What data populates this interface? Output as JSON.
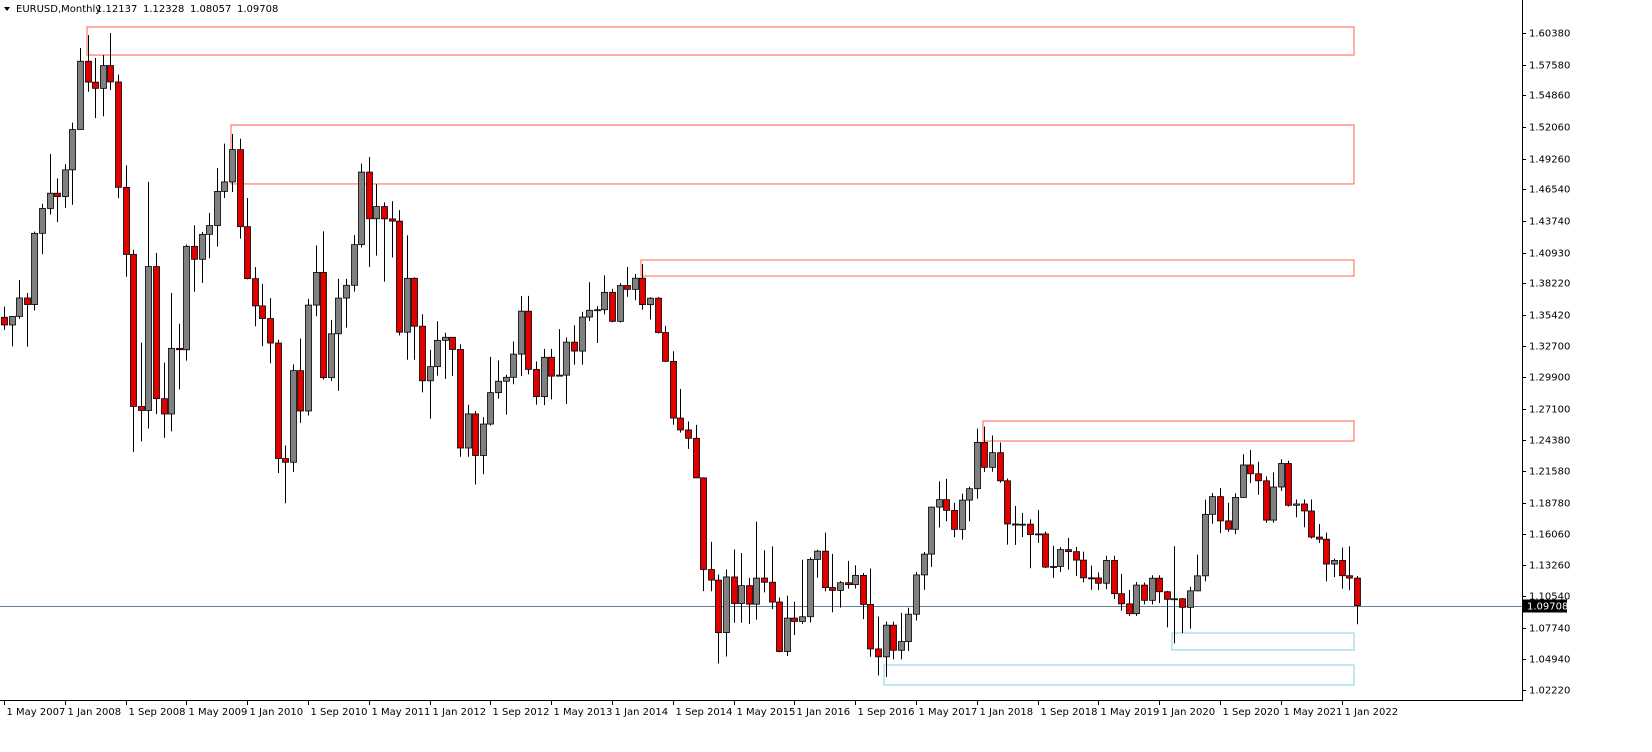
{
  "chart_data": {
    "type": "candlestick",
    "title": "EURUSD,Monthly",
    "categories": [
      "1 May 2007",
      null,
      null,
      null,
      null,
      null,
      null,
      null,
      "1 Jan 2008",
      null,
      null,
      null,
      null,
      null,
      null,
      null,
      "1 Sep 2008",
      null,
      null,
      null,
      null,
      null,
      null,
      null,
      "1 May 2009",
      null,
      null,
      null,
      null,
      null,
      null,
      null,
      "1 Jan 2010",
      null,
      null,
      null,
      null,
      null,
      null,
      null,
      "1 Sep 2010",
      null,
      null,
      null,
      null,
      null,
      null,
      null,
      "1 May 2011",
      null,
      null,
      null,
      null,
      null,
      null,
      null,
      "1 Jan 2012",
      null,
      null,
      null,
      null,
      null,
      null,
      null,
      "1 Sep 2012",
      null,
      null,
      null,
      null,
      null,
      null,
      null,
      "1 May 2013",
      null,
      null,
      null,
      null,
      null,
      null,
      null,
      "1 Jan 2014",
      null,
      null,
      null,
      null,
      null,
      null,
      null,
      "1 Sep 2014",
      null,
      null,
      null,
      null,
      null,
      null,
      null,
      "1 May 2015",
      null,
      null,
      null,
      null,
      null,
      null,
      null,
      "1 Jan 2016",
      null,
      null,
      null,
      null,
      null,
      null,
      null,
      "1 Sep 2016",
      null,
      null,
      null,
      null,
      null,
      null,
      null,
      "1 May 2017",
      null,
      null,
      null,
      null,
      null,
      null,
      null,
      "1 Jan 2018",
      null,
      null,
      null,
      null,
      null,
      null,
      null,
      "1 Sep 2018",
      null,
      null,
      null,
      null,
      null,
      null,
      null,
      "1 May 2019",
      null,
      null,
      null,
      null,
      null,
      null,
      null,
      "1 Jan 2020",
      null,
      null,
      null,
      null,
      null,
      null,
      null,
      "1 Sep 2020",
      null,
      null,
      null,
      null,
      null,
      null,
      null,
      "1 May 2021",
      null,
      null,
      null,
      null,
      null,
      null,
      null,
      "1 Jan 2022",
      null,
      null
    ],
    "open": [
      1.3522,
      1.3454,
      1.353,
      1.3693,
      1.3635,
      1.4265,
      1.4485,
      1.462,
      1.459,
      1.4827,
      1.5184,
      1.5788,
      1.5603,
      1.5548,
      1.575,
      1.5605,
      1.4672,
      1.4078,
      1.2733,
      1.2697,
      1.3971,
      1.2802,
      1.2666,
      1.3247,
      1.3235,
      1.415,
      1.4035,
      1.4256,
      1.4334,
      1.4636,
      1.472,
      1.5006,
      1.4324,
      1.3864,
      1.3623,
      1.3511,
      1.3294,
      1.2272,
      1.2239,
      1.305,
      1.2693,
      1.363,
      1.3919,
      1.2988,
      1.3376,
      1.3692,
      1.3805,
      1.4165,
      1.4807,
      1.4394,
      1.4502,
      1.4393,
      1.4373,
      1.339,
      1.3867,
      1.3443,
      1.296,
      1.3085,
      1.3318,
      1.3345,
      1.3237,
      1.2365,
      1.2667,
      1.2299,
      1.2577,
      1.2855,
      1.2956,
      1.2991,
      1.3196,
      1.3576,
      1.3061,
      1.282,
      1.3168,
      1.3001,
      1.301,
      1.3302,
      1.3223,
      1.3524,
      1.3584,
      1.3589,
      1.3743,
      1.3486,
      1.3803,
      1.3769,
      1.3868,
      1.3634,
      1.3691,
      1.3387,
      1.3132,
      1.263,
      1.2525,
      1.2451,
      1.2101,
      1.129,
      1.1196,
      1.0731,
      1.1224,
      1.0989,
      1.1147,
      1.0983,
      1.1214,
      1.1177,
      1.1002,
      1.0564,
      1.086,
      1.083,
      1.0872,
      1.1379,
      1.1452,
      1.113,
      1.1105,
      1.1173,
      1.1156,
      1.1238,
      1.0981,
      1.0587,
      1.0517,
      1.0797,
      1.0575,
      1.0652,
      1.0894,
      1.1242,
      1.1426,
      1.1842,
      1.1908,
      1.1813,
      1.1645,
      1.1904,
      1.2005,
      1.2415,
      1.2194,
      1.2324,
      1.2075,
      1.1693,
      1.1683,
      1.1691,
      1.1599,
      1.1605,
      1.1311,
      1.1317,
      1.1466,
      1.1448,
      1.1373,
      1.1216,
      1.1215,
      1.1168,
      1.137,
      1.1076,
      1.0986,
      1.0899,
      1.1152,
      1.1017,
      1.1213,
      1.1093,
      1.1026,
      1.1031,
      1.0955,
      1.1101,
      1.1234,
      1.1778,
      1.1935,
      1.172,
      1.1646,
      1.1928,
      1.2215,
      1.2137,
      1.2075,
      1.1727,
      1.202,
      1.2228,
      1.1858,
      1.187,
      1.1808,
      1.1577,
      1.1558,
      1.1338,
      1.137,
      1.1235,
      1.12137
    ],
    "high": [
      1.3616,
      1.3531,
      1.3852,
      1.3737,
      1.428,
      1.4527,
      1.4967,
      1.4751,
      1.4876,
      1.5245,
      1.5905,
      1.6019,
      1.5817,
      1.5842,
      1.6038,
      1.5668,
      1.4866,
      1.412,
      1.3298,
      1.472,
      1.4092,
      1.3121,
      1.3738,
      1.3465,
      1.4165,
      1.4337,
      1.4277,
      1.4446,
      1.4843,
      1.5059,
      1.5144,
      1.5102,
      1.4578,
      1.3966,
      1.3819,
      1.3692,
      1.3323,
      1.2387,
      1.3105,
      1.3334,
      1.3685,
      1.4157,
      1.4282,
      1.3499,
      1.3862,
      1.3862,
      1.4249,
      1.4882,
      1.4939,
      1.47,
      1.454,
      1.4549,
      1.447,
      1.4247,
      1.3876,
      1.3549,
      1.3234,
      1.3487,
      1.3385,
      1.3346,
      1.3283,
      1.2748,
      1.2693,
      1.2637,
      1.3172,
      1.314,
      1.3013,
      1.3308,
      1.371,
      1.3711,
      1.3131,
      1.3243,
      1.3243,
      1.3417,
      1.3344,
      1.3452,
      1.3571,
      1.3832,
      1.3621,
      1.3893,
      1.3774,
      1.3824,
      1.3967,
      1.3905,
      1.3993,
      1.37,
      1.37,
      1.3444,
      1.3221,
      1.2887,
      1.26,
      1.257,
      1.2105,
      1.1534,
      1.1245,
      1.129,
      1.1467,
      1.1436,
      1.1216,
      1.1714,
      1.146,
      1.1495,
      1.1041,
      1.1059,
      1.1003,
      1.1376,
      1.1397,
      1.1464,
      1.1616,
      1.1428,
      1.1187,
      1.1366,
      1.1327,
      1.1259,
      1.1299,
      1.0874,
      1.0829,
      1.0829,
      1.0906,
      1.0951,
      1.1268,
      1.1445,
      1.1846,
      1.207,
      1.2092,
      1.188,
      1.1961,
      1.2023,
      1.2537,
      1.2555,
      1.2476,
      1.2414,
      1.2095,
      1.1852,
      1.1791,
      1.1733,
      1.1815,
      1.1625,
      1.15,
      1.1487,
      1.157,
      1.1489,
      1.1448,
      1.1324,
      1.1265,
      1.1412,
      1.1412,
      1.125,
      1.1109,
      1.1179,
      1.1175,
      1.1239,
      1.1239,
      1.1101,
      1.1496,
      1.1038,
      1.1136,
      1.1422,
      1.1908,
      1.1966,
      1.2011,
      1.1881,
      1.1965,
      1.231,
      1.2349,
      1.2243,
      1.2114,
      1.215,
      1.2266,
      1.2254,
      1.1909,
      1.1909,
      1.1909,
      1.1692,
      1.1616,
      1.1386,
      1.1483,
      1.1495,
      1.12328
    ],
    "low": [
      1.3411,
      1.3266,
      1.3508,
      1.3262,
      1.3582,
      1.408,
      1.4432,
      1.4364,
      1.449,
      1.4518,
      1.5185,
      1.5518,
      1.5285,
      1.5301,
      1.5534,
      1.4576,
      1.3881,
      1.2329,
      1.2424,
      1.2538,
      1.2665,
      1.2455,
      1.2512,
      1.2885,
      1.3139,
      1.3748,
      1.3827,
      1.4045,
      1.4148,
      1.4578,
      1.4631,
      1.4218,
      1.3859,
      1.3443,
      1.3267,
      1.3115,
      1.2144,
      1.1876,
      1.2153,
      1.2588,
      1.2653,
      1.3531,
      1.297,
      1.2959,
      1.2871,
      1.343,
      1.3749,
      1.414,
      1.3968,
      1.4068,
      1.3838,
      1.4051,
      1.3362,
      1.3146,
      1.3146,
      1.2858,
      1.2624,
      1.3006,
      1.2977,
      1.3003,
      1.2288,
      1.2288,
      1.2042,
      1.2134,
      1.2563,
      1.2802,
      1.2661,
      1.2929,
      1.3001,
      1.3017,
      1.2749,
      1.2745,
      1.2795,
      1.3001,
      1.2754,
      1.3103,
      1.3103,
      1.349,
      1.3295,
      1.3549,
      1.3478,
      1.3477,
      1.3704,
      1.3673,
      1.3589,
      1.3502,
      1.3379,
      1.313,
      1.2571,
      1.2501,
      1.2358,
      1.2099,
      1.1098,
      1.1097,
      1.0458,
      1.052,
      1.0819,
      1.0819,
      1.0809,
      1.0846,
      1.1087,
      1.0939,
      1.0558,
      1.0524,
      1.071,
      1.0809,
      1.0822,
      1.1218,
      1.1097,
      1.0912,
      1.0952,
      1.1121,
      1.1122,
      1.0851,
      1.0518,
      1.0352,
      1.034,
      1.0494,
      1.0494,
      1.0569,
      1.0839,
      1.111,
      1.1313,
      1.1662,
      1.1717,
      1.1575,
      1.1554,
      1.1717,
      1.1916,
      1.2154,
      1.2155,
      1.2059,
      1.151,
      1.1508,
      1.1576,
      1.1301,
      1.1526,
      1.1302,
      1.1216,
      1.1269,
      1.1289,
      1.1234,
      1.1176,
      1.111,
      1.1107,
      1.1116,
      1.1028,
      1.0926,
      1.0879,
      1.0879,
      1.0981,
      1.0981,
      1.0992,
      1.0778,
      1.0636,
      1.0727,
      1.0767,
      1.1097,
      1.1185,
      1.1696,
      1.1612,
      1.1623,
      1.1602,
      1.1924,
      1.2054,
      1.1952,
      1.1704,
      1.1704,
      1.1986,
      1.1847,
      1.1752,
      1.1664,
      1.1563,
      1.1524,
      1.1186,
      1.1222,
      1.1121,
      1.1106,
      1.08057
    ],
    "close": [
      1.3454,
      1.353,
      1.3693,
      1.3635,
      1.4265,
      1.4485,
      1.462,
      1.459,
      1.4827,
      1.5184,
      1.5788,
      1.5603,
      1.5548,
      1.575,
      1.5605,
      1.4672,
      1.4078,
      1.2733,
      1.2697,
      1.3971,
      1.2802,
      1.2666,
      1.3247,
      1.3235,
      1.415,
      1.4035,
      1.4256,
      1.4334,
      1.4636,
      1.472,
      1.5006,
      1.4324,
      1.3864,
      1.3623,
      1.3511,
      1.3294,
      1.2272,
      1.2239,
      1.305,
      1.2693,
      1.363,
      1.3919,
      1.2988,
      1.3376,
      1.3692,
      1.3805,
      1.4165,
      1.4807,
      1.4394,
      1.4502,
      1.4393,
      1.4373,
      1.339,
      1.3867,
      1.3443,
      1.296,
      1.3085,
      1.3318,
      1.3345,
      1.3237,
      1.2365,
      1.2667,
      1.2299,
      1.2577,
      1.2855,
      1.2956,
      1.2991,
      1.3196,
      1.3576,
      1.3061,
      1.282,
      1.3168,
      1.3001,
      1.301,
      1.3302,
      1.3223,
      1.3524,
      1.3584,
      1.3589,
      1.3743,
      1.3486,
      1.3803,
      1.3769,
      1.3868,
      1.3634,
      1.3691,
      1.3387,
      1.3132,
      1.263,
      1.2525,
      1.2451,
      1.2101,
      1.129,
      1.1196,
      1.0731,
      1.1224,
      1.0989,
      1.1147,
      1.0983,
      1.1214,
      1.1177,
      1.1002,
      1.0564,
      1.086,
      1.083,
      1.0872,
      1.1379,
      1.1452,
      1.113,
      1.1105,
      1.1173,
      1.1156,
      1.1238,
      1.0981,
      1.0587,
      1.0517,
      1.0797,
      1.0575,
      1.0652,
      1.0894,
      1.1242,
      1.1426,
      1.1842,
      1.1908,
      1.1813,
      1.1645,
      1.1904,
      1.2005,
      1.2415,
      1.2194,
      1.2324,
      1.2075,
      1.1693,
      1.1683,
      1.1691,
      1.1599,
      1.1605,
      1.1311,
      1.1317,
      1.1466,
      1.1448,
      1.1373,
      1.1216,
      1.1215,
      1.1168,
      1.137,
      1.1076,
      1.0986,
      1.0899,
      1.1152,
      1.1017,
      1.1213,
      1.1093,
      1.1026,
      1.1031,
      1.0955,
      1.1101,
      1.1234,
      1.1778,
      1.1935,
      1.172,
      1.1646,
      1.1928,
      1.2215,
      1.2137,
      1.2075,
      1.1727,
      1.202,
      1.2228,
      1.1858,
      1.187,
      1.1808,
      1.1577,
      1.1558,
      1.1338,
      1.137,
      1.1235,
      1.1214,
      1.09708
    ],
    "up_color": "#808080",
    "down_color": "#e00000",
    "ylim": [
      1.0135,
      1.633
    ],
    "yticks": [
      {
        "value": 1.6038,
        "label": "1.60380"
      },
      {
        "value": 1.5758,
        "label": "1.57580"
      },
      {
        "value": 1.5486,
        "label": "1.54860"
      },
      {
        "value": 1.5206,
        "label": "1.52060"
      },
      {
        "value": 1.4926,
        "label": "1.49260"
      },
      {
        "value": 1.4654,
        "label": "1.46540"
      },
      {
        "value": 1.4374,
        "label": "1.43740"
      },
      {
        "value": 1.4093,
        "label": "1.40930"
      },
      {
        "value": 1.3822,
        "label": "1.38220"
      },
      {
        "value": 1.3542,
        "label": "1.35420"
      },
      {
        "value": 1.327,
        "label": "1.32700"
      },
      {
        "value": 1.299,
        "label": "1.29900"
      },
      {
        "value": 1.271,
        "label": "1.27100"
      },
      {
        "value": 1.2438,
        "label": "1.24380"
      },
      {
        "value": 1.2158,
        "label": "1.21580"
      },
      {
        "value": 1.1878,
        "label": "1.18780"
      },
      {
        "value": 1.1606,
        "label": "1.16060"
      },
      {
        "value": 1.1326,
        "label": "1.13260"
      },
      {
        "value": 1.1054,
        "label": "1.10540"
      },
      {
        "value": 1.0774,
        "label": "1.07740"
      },
      {
        "value": 1.0494,
        "label": "1.04940"
      },
      {
        "value": 1.0222,
        "label": "1.02220"
      }
    ],
    "zones": [
      {
        "top": 1.6091,
        "bottom": 1.5843,
        "color": "#ff6347"
      },
      {
        "top": 1.5224,
        "bottom": 1.4702,
        "color": "#ff6347"
      },
      {
        "top": 1.4029,
        "bottom": 1.3887,
        "color": "#ff6347"
      },
      {
        "top": 1.2604,
        "bottom": 1.2427,
        "color": "#ff6347"
      },
      {
        "top": 1.0728,
        "bottom": 1.0578,
        "color": "#87ceeb"
      },
      {
        "top": 1.0445,
        "bottom": 1.0268,
        "color": "#87ceeb"
      }
    ],
    "price_line_color": "#6a7f99"
  }
}
